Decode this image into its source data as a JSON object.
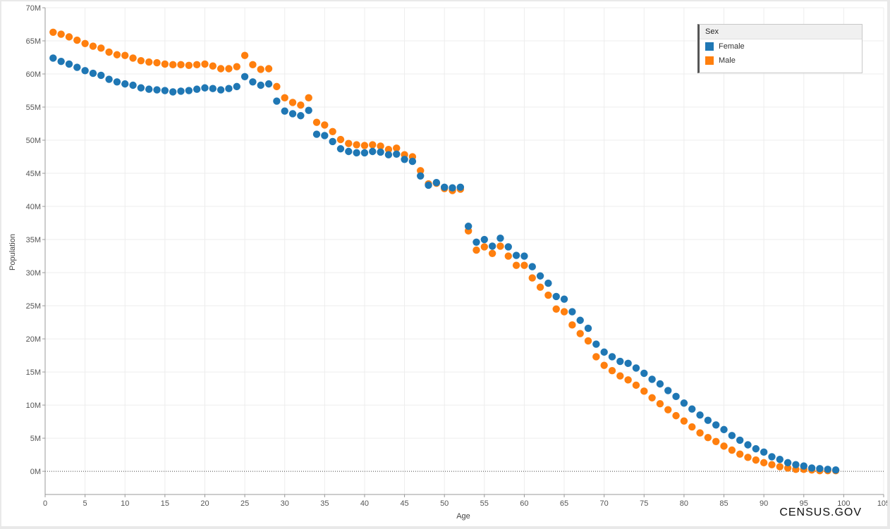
{
  "chart_data": {
    "type": "scatter",
    "title": "",
    "xlabel": "Age",
    "ylabel": "Population",
    "xlim": [
      0,
      105
    ],
    "ylim": [
      -3.5,
      70
    ],
    "xticks": [
      0,
      5,
      10,
      15,
      20,
      25,
      30,
      35,
      40,
      45,
      50,
      55,
      60,
      65,
      70,
      75,
      80,
      85,
      90,
      95,
      100,
      105
    ],
    "yticks": [
      0,
      5,
      10,
      15,
      20,
      25,
      30,
      35,
      40,
      45,
      50,
      55,
      60,
      65,
      70
    ],
    "ytick_suffix": "M",
    "units": "millions",
    "legend": {
      "title": "Sex",
      "position": "top-right"
    },
    "series": [
      {
        "name": "Female",
        "color": "#1f77b4",
        "x": [
          1,
          2,
          3,
          4,
          5,
          6,
          7,
          8,
          9,
          10,
          11,
          12,
          13,
          14,
          15,
          16,
          17,
          18,
          19,
          20,
          21,
          22,
          23,
          24,
          25,
          26,
          27,
          28,
          29,
          30,
          31,
          32,
          33,
          34,
          35,
          36,
          37,
          38,
          39,
          40,
          41,
          42,
          43,
          44,
          45,
          46,
          47,
          48,
          49,
          50,
          51,
          52,
          53,
          54,
          55,
          56,
          57,
          58,
          59,
          60,
          61,
          62,
          63,
          64,
          65,
          66,
          67,
          68,
          69,
          70,
          71,
          72,
          73,
          74,
          75,
          76,
          77,
          78,
          79,
          80,
          81,
          82,
          83,
          84,
          85,
          86,
          87,
          88,
          89,
          90,
          91,
          92,
          93,
          94,
          95,
          96,
          97,
          98,
          99
        ],
        "values": [
          62.4,
          61.9,
          61.5,
          61.0,
          60.5,
          60.1,
          59.8,
          59.2,
          58.8,
          58.5,
          58.3,
          57.9,
          57.7,
          57.6,
          57.5,
          57.3,
          57.4,
          57.5,
          57.7,
          57.9,
          57.8,
          57.6,
          57.8,
          58.1,
          59.6,
          58.8,
          58.3,
          58.5,
          55.9,
          54.4,
          54.0,
          53.7,
          54.5,
          50.9,
          50.7,
          49.8,
          48.7,
          48.3,
          48.1,
          48.1,
          48.3,
          48.2,
          47.8,
          47.9,
          47.1,
          46.8,
          44.6,
          43.2,
          43.6,
          42.9,
          42.8,
          42.9,
          37.0,
          34.6,
          35.0,
          34.0,
          35.2,
          33.9,
          32.6,
          32.5,
          30.9,
          29.5,
          28.4,
          26.4,
          26.0,
          24.1,
          22.8,
          21.6,
          19.2,
          18.0,
          17.3,
          16.6,
          16.3,
          15.6,
          14.8,
          13.9,
          13.2,
          12.2,
          11.3,
          10.3,
          9.4,
          8.5,
          7.7,
          7.0,
          6.3,
          5.4,
          4.7,
          4.0,
          3.4,
          2.9,
          2.2,
          1.8,
          1.3,
          1.0,
          0.8,
          0.5,
          0.4,
          0.3,
          0.2
        ]
      },
      {
        "name": "Male",
        "color": "#ff7f0e",
        "x": [
          1,
          2,
          3,
          4,
          5,
          6,
          7,
          8,
          9,
          10,
          11,
          12,
          13,
          14,
          15,
          16,
          17,
          18,
          19,
          20,
          21,
          22,
          23,
          24,
          25,
          26,
          27,
          28,
          29,
          30,
          31,
          32,
          33,
          34,
          35,
          36,
          37,
          38,
          39,
          40,
          41,
          42,
          43,
          44,
          45,
          46,
          47,
          48,
          49,
          50,
          51,
          52,
          53,
          54,
          55,
          56,
          57,
          58,
          59,
          60,
          61,
          62,
          63,
          64,
          65,
          66,
          67,
          68,
          69,
          70,
          71,
          72,
          73,
          74,
          75,
          76,
          77,
          78,
          79,
          80,
          81,
          82,
          83,
          84,
          85,
          86,
          87,
          88,
          89,
          90,
          91,
          92,
          93,
          94,
          95,
          96,
          97,
          98,
          99
        ],
        "values": [
          66.3,
          66.0,
          65.6,
          65.1,
          64.6,
          64.2,
          63.9,
          63.3,
          62.9,
          62.8,
          62.4,
          62.0,
          61.8,
          61.7,
          61.5,
          61.4,
          61.4,
          61.3,
          61.4,
          61.5,
          61.2,
          60.8,
          60.8,
          61.1,
          62.8,
          61.4,
          60.7,
          60.8,
          58.1,
          56.4,
          55.7,
          55.3,
          56.4,
          52.7,
          52.3,
          51.3,
          50.1,
          49.5,
          49.3,
          49.2,
          49.3,
          49.1,
          48.6,
          48.8,
          47.8,
          47.5,
          45.4,
          43.4,
          43.5,
          42.7,
          42.4,
          42.6,
          36.3,
          33.4,
          33.9,
          32.9,
          34.0,
          32.5,
          31.1,
          31.1,
          29.2,
          27.8,
          26.6,
          24.5,
          24.1,
          22.1,
          20.8,
          19.7,
          17.3,
          16.0,
          15.2,
          14.4,
          13.8,
          13.0,
          12.1,
          11.1,
          10.2,
          9.3,
          8.4,
          7.6,
          6.7,
          5.8,
          5.1,
          4.5,
          3.8,
          3.2,
          2.6,
          2.1,
          1.7,
          1.3,
          1.0,
          0.7,
          0.5,
          0.3,
          0.3,
          0.2,
          0.1,
          0.1,
          0.1
        ]
      }
    ]
  },
  "source_label": "CENSUS.GOV"
}
